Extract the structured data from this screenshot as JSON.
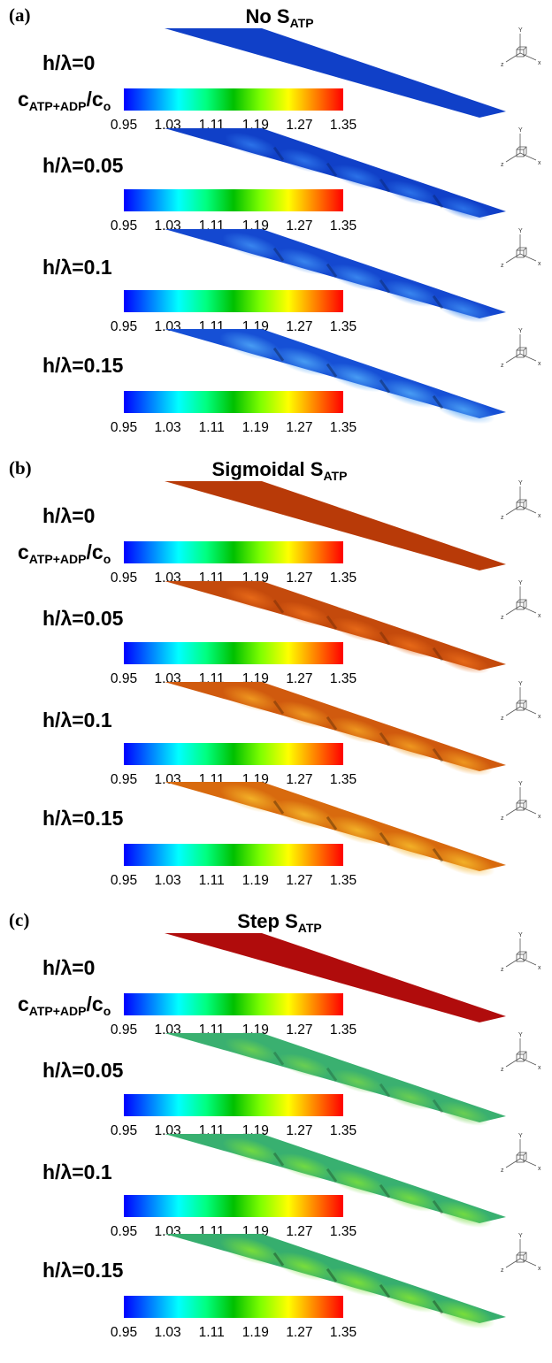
{
  "panels": [
    {
      "letter": "(a)",
      "title_main": "No S",
      "title_sub": "ATP",
      "rows": [
        {
          "label": "h/λ=0",
          "surface": {
            "base": "#1040c8",
            "bump": "#2a6fe8",
            "amp": 0
          }
        },
        {
          "label": "h/λ=0.05",
          "surface": {
            "base": "#1040c8",
            "bump": "#2c74ea",
            "amp": 0.05
          }
        },
        {
          "label": "h/λ=0.1",
          "surface": {
            "base": "#1448d0",
            "bump": "#3a88f0",
            "amp": 0.1
          }
        },
        {
          "label": "h/λ=0.15",
          "surface": {
            "base": "#1650d6",
            "bump": "#4aa0f5",
            "amp": 0.15
          }
        }
      ]
    },
    {
      "letter": "(b)",
      "title_main": "Sigmoidal S",
      "title_sub": "ATP",
      "rows": [
        {
          "label": "h/λ=0",
          "surface": {
            "base": "#b83a08",
            "bump": "#c04a10",
            "amp": 0
          }
        },
        {
          "label": "h/λ=0.05",
          "surface": {
            "base": "#c44a0c",
            "bump": "#e86a18",
            "amp": 0.05
          }
        },
        {
          "label": "h/λ=0.1",
          "surface": {
            "base": "#d05a0e",
            "bump": "#f09a20",
            "amp": 0.1
          }
        },
        {
          "label": "h/λ=0.15",
          "surface": {
            "base": "#d86a0e",
            "bump": "#f4b428",
            "amp": 0.15
          }
        }
      ]
    },
    {
      "letter": "(c)",
      "title_main": "Step S",
      "title_sub": "ATP",
      "rows": [
        {
          "label": "h/λ=0",
          "surface": {
            "base": "#b00c0c",
            "bump": "#b00c0c",
            "amp": 0
          }
        },
        {
          "label": "h/λ=0.05",
          "surface": {
            "base": "#3ab070",
            "bump": "#6cd050",
            "amp": 0.05
          }
        },
        {
          "label": "h/λ=0.1",
          "surface": {
            "base": "#38b070",
            "bump": "#74dc40",
            "amp": 0.1
          }
        },
        {
          "label": "h/λ=0.15",
          "surface": {
            "base": "#36ae6e",
            "bump": "#7ce038",
            "amp": 0.15
          }
        }
      ]
    }
  ],
  "legend": {
    "label_main": "c",
    "label_sub": "ATP+ADP",
    "label_slash": "/c",
    "label_sub2": "o",
    "ticks": [
      "0.95",
      "1.03",
      "1.11",
      "1.19",
      "1.27",
      "1.35"
    ],
    "range": [
      0.95,
      1.35
    ],
    "colormap": [
      "#0000ff",
      "#0080ff",
      "#00ffff",
      "#00ff80",
      "#00c000",
      "#80ff00",
      "#ffff00",
      "#ff8000",
      "#ff0000"
    ]
  },
  "axes_triad": {
    "x": "x",
    "y": "Y",
    "z": "z"
  }
}
